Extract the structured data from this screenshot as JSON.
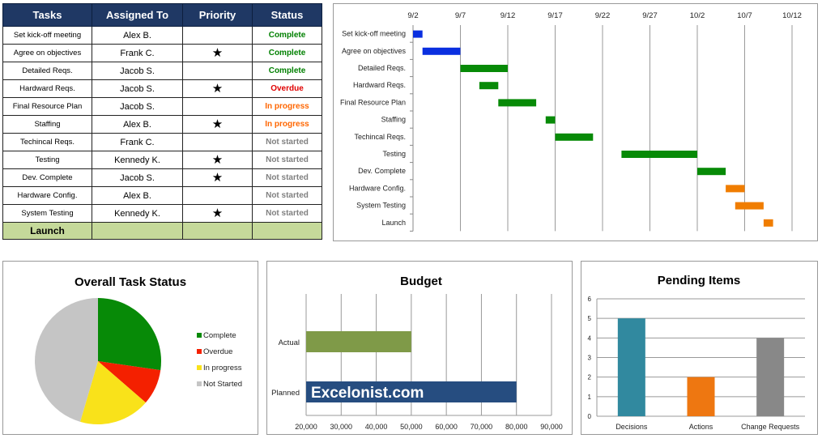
{
  "table": {
    "headers": [
      "Tasks",
      "Assigned To",
      "Priority",
      "Status"
    ],
    "rows": [
      {
        "task": "Set kick-off meeting",
        "assigned": "Alex B.",
        "priority": "",
        "status": "Complete"
      },
      {
        "task": "Agree on objectives",
        "assigned": "Frank C.",
        "priority": "★",
        "status": "Complete"
      },
      {
        "task": "Detailed Reqs.",
        "assigned": "Jacob S.",
        "priority": "",
        "status": "Complete"
      },
      {
        "task": "Hardward Reqs.",
        "assigned": "Jacob S.",
        "priority": "★",
        "status": "Overdue"
      },
      {
        "task": "Final Resource Plan",
        "assigned": "Jacob S.",
        "priority": "",
        "status": "In progress"
      },
      {
        "task": "Staffing",
        "assigned": "Alex B.",
        "priority": "★",
        "status": "In progress"
      },
      {
        "task": "Techincal Reqs.",
        "assigned": "Frank C.",
        "priority": "",
        "status": "Not started"
      },
      {
        "task": "Testing",
        "assigned": "Kennedy K.",
        "priority": "★",
        "status": "Not started"
      },
      {
        "task": "Dev. Complete",
        "assigned": "Jacob S.",
        "priority": "★",
        "status": "Not started"
      },
      {
        "task": "Hardware Config.",
        "assigned": "Alex B.",
        "priority": "",
        "status": "Not started"
      },
      {
        "task": "System Testing",
        "assigned": "Kennedy K.",
        "priority": "★",
        "status": "Not started"
      }
    ],
    "final_row": "Launch",
    "status_colors": {
      "Complete": "#008000",
      "Overdue": "#e00000",
      "In progress": "#ff6600",
      "Not started": "#808080"
    }
  },
  "chart_data": [
    {
      "type": "bar",
      "subtype": "gantt",
      "x_ticks": [
        "9/2",
        "9/7",
        "9/12",
        "9/17",
        "9/22",
        "9/27",
        "10/2",
        "10/7",
        "10/12"
      ],
      "tasks": [
        {
          "name": "Set kick-off meeting",
          "start": "9/2",
          "end": "9/3",
          "color": "#0a2fe0"
        },
        {
          "name": "Agree on objectives",
          "start": "9/3",
          "end": "9/7",
          "color": "#0a2fe0"
        },
        {
          "name": "Detailed Reqs.",
          "start": "9/7",
          "end": "9/12",
          "color": "#078a07"
        },
        {
          "name": "Hardward Reqs.",
          "start": "9/9",
          "end": "9/11",
          "color": "#078a07"
        },
        {
          "name": "Final Resource Plan",
          "start": "9/11",
          "end": "9/15",
          "color": "#078a07"
        },
        {
          "name": "Staffing",
          "start": "9/16",
          "end": "9/17",
          "color": "#078a07"
        },
        {
          "name": "Techincal Reqs.",
          "start": "9/17",
          "end": "9/21",
          "color": "#078a07"
        },
        {
          "name": "Testing",
          "start": "9/24",
          "end": "10/2",
          "color": "#078a07"
        },
        {
          "name": "Dev. Complete",
          "start": "10/2",
          "end": "10/5",
          "color": "#078a07"
        },
        {
          "name": "Hardware Config.",
          "start": "10/5",
          "end": "10/7",
          "color": "#f07d00"
        },
        {
          "name": "System Testing",
          "start": "10/6",
          "end": "10/9",
          "color": "#f07d00"
        },
        {
          "name": "Launch",
          "start": "10/9",
          "end": "10/10",
          "color": "#f07d00"
        }
      ],
      "grid": true
    },
    {
      "type": "pie",
      "title": "Overall Task Status",
      "slices": [
        {
          "label": "Complete",
          "value": 3,
          "color": "#078a07"
        },
        {
          "label": "Overdue",
          "value": 1,
          "color": "#f42000"
        },
        {
          "label": "In progress",
          "value": 2,
          "color": "#f9e21a"
        },
        {
          "label": "Not Started",
          "value": 5,
          "color": "#c5c5c5"
        }
      ],
      "legend": "right"
    },
    {
      "type": "bar",
      "orientation": "horizontal",
      "title": "Budget",
      "categories": [
        "Actual",
        "Planned"
      ],
      "values": [
        50000,
        80000
      ],
      "colors": [
        "#7f9a48",
        "#264d80"
      ],
      "bar_label": "Excelonist.com",
      "xlim": [
        20000,
        90000
      ],
      "x_ticks": [
        "20,000",
        "30,000",
        "40,000",
        "50,000",
        "60,000",
        "70,000",
        "80,000",
        "90,000"
      ],
      "grid": true
    },
    {
      "type": "bar",
      "title": "Pending Items",
      "categories": [
        "Decisions",
        "Actions",
        "Change Requests"
      ],
      "values": [
        5,
        2,
        4
      ],
      "colors": [
        "#31899f",
        "#ee7711",
        "#888888"
      ],
      "ylim": [
        0,
        6
      ],
      "y_ticks": [
        "0",
        "1",
        "2",
        "3",
        "4",
        "5",
        "6"
      ],
      "grid": true
    }
  ]
}
